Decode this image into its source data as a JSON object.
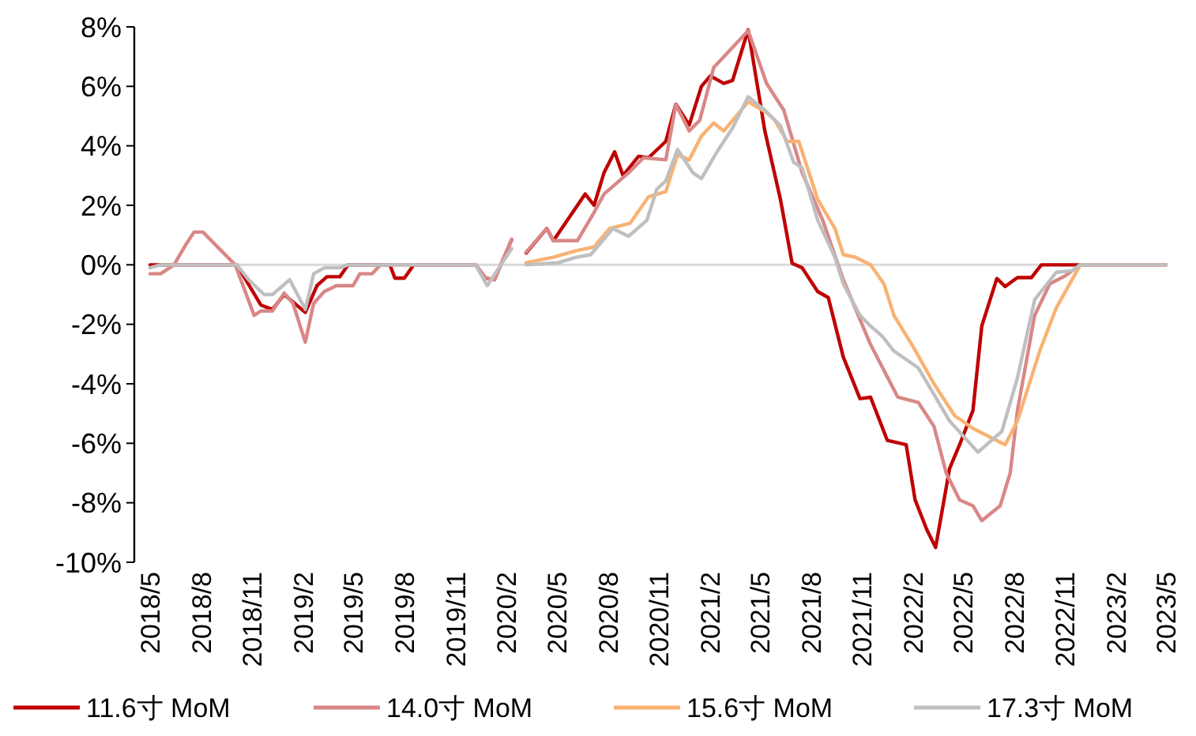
{
  "chart_data": {
    "type": "line",
    "xlim": [
      "2018-05",
      "2023-05"
    ],
    "xticks": [
      {
        "value": "2018-05",
        "label": "2018/5"
      },
      {
        "value": "2018-08",
        "label": "2018/8"
      },
      {
        "value": "2018-11",
        "label": "2018/11"
      },
      {
        "value": "2019-02",
        "label": "2019/2"
      },
      {
        "value": "2019-05",
        "label": "2019/5"
      },
      {
        "value": "2019-08",
        "label": "2019/8"
      },
      {
        "value": "2019-11",
        "label": "2019/11"
      },
      {
        "value": "2020-02",
        "label": "2020/2"
      },
      {
        "value": "2020-05",
        "label": "2020/5"
      },
      {
        "value": "2020-08",
        "label": "2020/8"
      },
      {
        "value": "2020-11",
        "label": "2020/11"
      },
      {
        "value": "2021-02",
        "label": "2021/2"
      },
      {
        "value": "2021-05",
        "label": "2021/5"
      },
      {
        "value": "2021-08",
        "label": "2021/8"
      },
      {
        "value": "2021-11",
        "label": "2021/11"
      },
      {
        "value": "2022-02",
        "label": "2022/2"
      },
      {
        "value": "2022-05",
        "label": "2022/5"
      },
      {
        "value": "2022-08",
        "label": "2022/8"
      },
      {
        "value": "2022-11",
        "label": "2022/11"
      },
      {
        "value": "2023-02",
        "label": "2023/2"
      },
      {
        "value": "2023-05",
        "label": "2023/5"
      }
    ],
    "ylim": [
      -10,
      8
    ],
    "yticks": [
      {
        "value": -10,
        "label": "-10%"
      },
      {
        "value": -8,
        "label": "-8%"
      },
      {
        "value": -6,
        "label": "-6%"
      },
      {
        "value": -4,
        "label": "-4%"
      },
      {
        "value": -2,
        "label": "-2%"
      },
      {
        "value": 0,
        "label": "0%"
      },
      {
        "value": 2,
        "label": "2%"
      },
      {
        "value": 4,
        "label": "4%"
      },
      {
        "value": 6,
        "label": "6%"
      },
      {
        "value": 8,
        "label": "8%"
      }
    ],
    "ref_lines": [
      {
        "axis": "y",
        "value": 0,
        "color": "#d9d9d9"
      }
    ],
    "legend": "bottom",
    "marker": "none",
    "line_style": "solid",
    "series": [
      {
        "name": "11.6寸 MoM",
        "color": "#c00000",
        "x": [
          "2018-05-01",
          "2018-10-04",
          "2018-11-16",
          "2018-12-07",
          "2018-12-28",
          "2019-02-04",
          "2019-02-25",
          "2019-03-15",
          "2019-04-07",
          "2019-04-22",
          "2019-07-06",
          "2019-07-15",
          "2019-08-01",
          "2019-08-18",
          "2019-12-07",
          "2019-12-25",
          "2020-01-10",
          "2020-02-10",
          "2020-02-25",
          "2020-03-07",
          "2020-04-13",
          "2020-04-25",
          "2020-06-21",
          "2020-07-07",
          "2020-07-25",
          "2020-08-13",
          "2020-08-28",
          "2020-09-25",
          "2020-10-13",
          "2020-11-13",
          "2020-12-01",
          "2020-12-25",
          "2021-01-16",
          "2021-02-01",
          "2021-02-25",
          "2021-03-13",
          "2021-04-10",
          "2021-05-10",
          "2021-06-07",
          "2021-06-28",
          "2021-07-16",
          "2021-08-13",
          "2021-09-01",
          "2021-09-28",
          "2021-10-28",
          "2021-11-16",
          "2021-12-16",
          "2022-01-19",
          "2022-02-04",
          "2022-02-25",
          "2022-03-13",
          "2022-04-07",
          "2022-04-25",
          "2022-05-19",
          "2022-06-04",
          "2022-07-01",
          "2022-07-16",
          "2022-08-07",
          "2022-09-01",
          "2022-09-19",
          "2023-05-01"
        ],
        "values": [
          0,
          0,
          -1.35,
          -1.5,
          -1.0,
          -1.6,
          -0.7,
          -0.4,
          -0.4,
          0,
          0,
          -0.45,
          -0.45,
          0,
          0,
          -0.45,
          -0.5,
          0.85,
          null,
          0.4,
          1.22,
          0.81,
          2.38,
          2.0,
          3.1,
          3.8,
          3.0,
          3.65,
          3.6,
          4.15,
          5.4,
          4.7,
          6.0,
          6.35,
          6.1,
          6.2,
          7.9,
          4.5,
          2.2,
          0.05,
          -0.1,
          -0.9,
          -1.1,
          -3.1,
          -4.5,
          -4.45,
          -5.9,
          -6.05,
          -7.9,
          -8.9,
          -9.5,
          -6.85,
          -6.05,
          -4.9,
          -2.05,
          -0.46,
          -0.73,
          -0.43,
          -0.43,
          0,
          0
        ]
      },
      {
        "name": "14.0寸 MoM",
        "color": "#d98787",
        "x": [
          "2018-05-01",
          "2018-05-20",
          "2018-06-13",
          "2018-07-05",
          "2018-07-19",
          "2018-08-04",
          "2018-10-01",
          "2018-11-04",
          "2018-11-16",
          "2018-12-07",
          "2018-12-28",
          "2019-01-13",
          "2019-02-04",
          "2019-02-19",
          "2019-03-10",
          "2019-04-01",
          "2019-05-01",
          "2019-05-13",
          "2019-06-04",
          "2019-06-19",
          "2019-12-07",
          "2019-12-25",
          "2020-01-10",
          "2020-02-10",
          "2020-02-25",
          "2020-03-07",
          "2020-04-13",
          "2020-04-25",
          "2020-06-07",
          "2020-07-07",
          "2020-07-25",
          "2020-09-07",
          "2020-10-04",
          "2020-11-13",
          "2020-12-01",
          "2020-12-25",
          "2021-01-13",
          "2021-02-07",
          "2021-04-10",
          "2021-05-13",
          "2021-06-13",
          "2021-07-16",
          "2021-08-22",
          "2021-09-28",
          "2021-11-16",
          "2022-01-04",
          "2022-02-10",
          "2022-03-10",
          "2022-04-01",
          "2022-04-25",
          "2022-05-19",
          "2022-06-04",
          "2022-07-07",
          "2022-07-25",
          "2022-08-07",
          "2022-09-07",
          "2022-10-04",
          "2022-11-01",
          "2022-11-28",
          "2023-05-01"
        ],
        "values": [
          -0.3,
          -0.3,
          0,
          0.7,
          1.1,
          1.1,
          0,
          -1.7,
          -1.55,
          -1.55,
          -0.95,
          -1.3,
          -2.6,
          -1.3,
          -0.9,
          -0.7,
          -0.7,
          -0.3,
          -0.3,
          0,
          0,
          -0.45,
          -0.5,
          0.85,
          null,
          0.43,
          1.22,
          0.81,
          0.81,
          1.76,
          2.38,
          3.09,
          3.6,
          3.53,
          5.39,
          4.5,
          4.86,
          6.63,
          7.87,
          6.1,
          5.2,
          3.1,
          1.5,
          -0.5,
          -2.68,
          -4.45,
          -4.63,
          -5.43,
          -7.0,
          -7.9,
          -8.1,
          -8.6,
          -8.1,
          -7.0,
          -4.9,
          -1.7,
          -0.64,
          -0.37,
          0,
          0
        ]
      },
      {
        "name": "15.6寸 MoM",
        "color": "#f8b273",
        "x": [
          "2020-03-07",
          "2020-04-25",
          "2020-06-04",
          "2020-07-07",
          "2020-08-04",
          "2020-09-10",
          "2020-10-13",
          "2020-11-13",
          "2020-12-04",
          "2020-12-25",
          "2021-01-16",
          "2021-02-07",
          "2021-02-25",
          "2021-04-10",
          "2021-05-13",
          "2021-05-28",
          "2021-06-19",
          "2021-07-10",
          "2021-08-13",
          "2021-09-13",
          "2021-09-28",
          "2021-10-19",
          "2021-11-16",
          "2021-12-10",
          "2021-12-28",
          "2022-02-01",
          "2022-03-10",
          "2022-04-16",
          "2022-05-19",
          "2022-07-16",
          "2022-08-07",
          "2022-09-16",
          "2022-10-16",
          "2022-11-28",
          "2023-05-01"
        ],
        "values": [
          0.07,
          0.26,
          0.47,
          0.6,
          1.22,
          1.4,
          2.29,
          2.46,
          3.7,
          3.53,
          4.33,
          4.77,
          4.5,
          5.48,
          5.12,
          4.86,
          4.15,
          4.15,
          2.2,
          1.22,
          0.34,
          0.26,
          0,
          -0.64,
          -1.7,
          -2.77,
          -4.0,
          -5.07,
          -5.5,
          -6.05,
          -5.25,
          -2.9,
          -1.44,
          0,
          0
        ]
      },
      {
        "name": "17.3寸 MoM",
        "color": "#bfbfbf",
        "x": [
          "2018-05-01",
          "2018-05-20",
          "2018-10-04",
          "2018-10-25",
          "2018-11-22",
          "2018-12-07",
          "2019-01-07",
          "2019-02-04",
          "2019-02-19",
          "2019-03-10",
          "2019-04-07",
          "2019-04-22",
          "2019-12-07",
          "2019-12-28",
          "2020-02-10",
          "2020-02-25",
          "2020-03-07",
          "2020-05-04",
          "2020-06-04",
          "2020-07-01",
          "2020-08-10",
          "2020-09-07",
          "2020-10-10",
          "2020-10-28",
          "2020-11-13",
          "2020-12-04",
          "2021-01-01",
          "2021-01-16",
          "2021-02-13",
          "2021-03-13",
          "2021-04-10",
          "2021-05-10",
          "2021-06-07",
          "2021-07-01",
          "2021-07-16",
          "2021-08-13",
          "2021-09-13",
          "2021-09-28",
          "2021-10-28",
          "2021-11-16",
          "2021-12-07",
          "2021-12-28",
          "2022-02-10",
          "2022-04-07",
          "2022-05-28",
          "2022-07-10",
          "2022-08-07",
          "2022-09-07",
          "2022-10-16",
          "2022-11-13",
          "2022-11-28",
          "2023-05-01"
        ],
        "values": [
          -0.1,
          0,
          0,
          -0.5,
          -1.0,
          -1.0,
          -0.5,
          -1.5,
          -0.3,
          -0.1,
          -0.1,
          0,
          0,
          -0.7,
          0.55,
          null,
          0,
          0.07,
          0.25,
          0.34,
          1.22,
          0.96,
          1.5,
          2.55,
          2.82,
          3.88,
          3.09,
          2.9,
          3.8,
          4.6,
          5.65,
          5.2,
          4.68,
          3.44,
          3.26,
          1.5,
          0.25,
          -0.64,
          -1.7,
          -2.06,
          -2.4,
          -2.9,
          -3.47,
          -5.25,
          -6.3,
          -5.6,
          -3.8,
          -1.17,
          -0.25,
          -0.2,
          0,
          0
        ]
      }
    ]
  }
}
